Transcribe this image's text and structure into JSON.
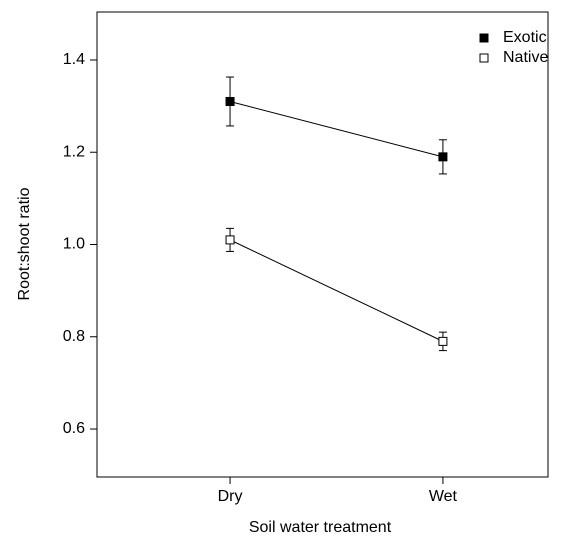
{
  "chart_data": {
    "type": "line",
    "x_label": "Soil water treatment",
    "y_label": "Root:shoot ratio",
    "categories": [
      "Dry",
      "Wet"
    ],
    "series": [
      {
        "name": "Exotic",
        "color": "#000000",
        "fill": "#000000",
        "values": [
          1.31,
          1.19
        ],
        "errors": [
          0.053,
          0.037
        ]
      },
      {
        "name": "Native",
        "color": "#000000",
        "fill": "#ffffff",
        "values": [
          1.01,
          0.79
        ],
        "errors": [
          0.025,
          0.02
        ]
      }
    ],
    "ylim": [
      0.496,
      1.504
    ],
    "yticks": [
      0.6,
      0.8,
      {
        "value": 1,
        "label": "1.0"
      },
      1.2,
      1.4
    ],
    "grid": false,
    "legend": "upper right"
  }
}
